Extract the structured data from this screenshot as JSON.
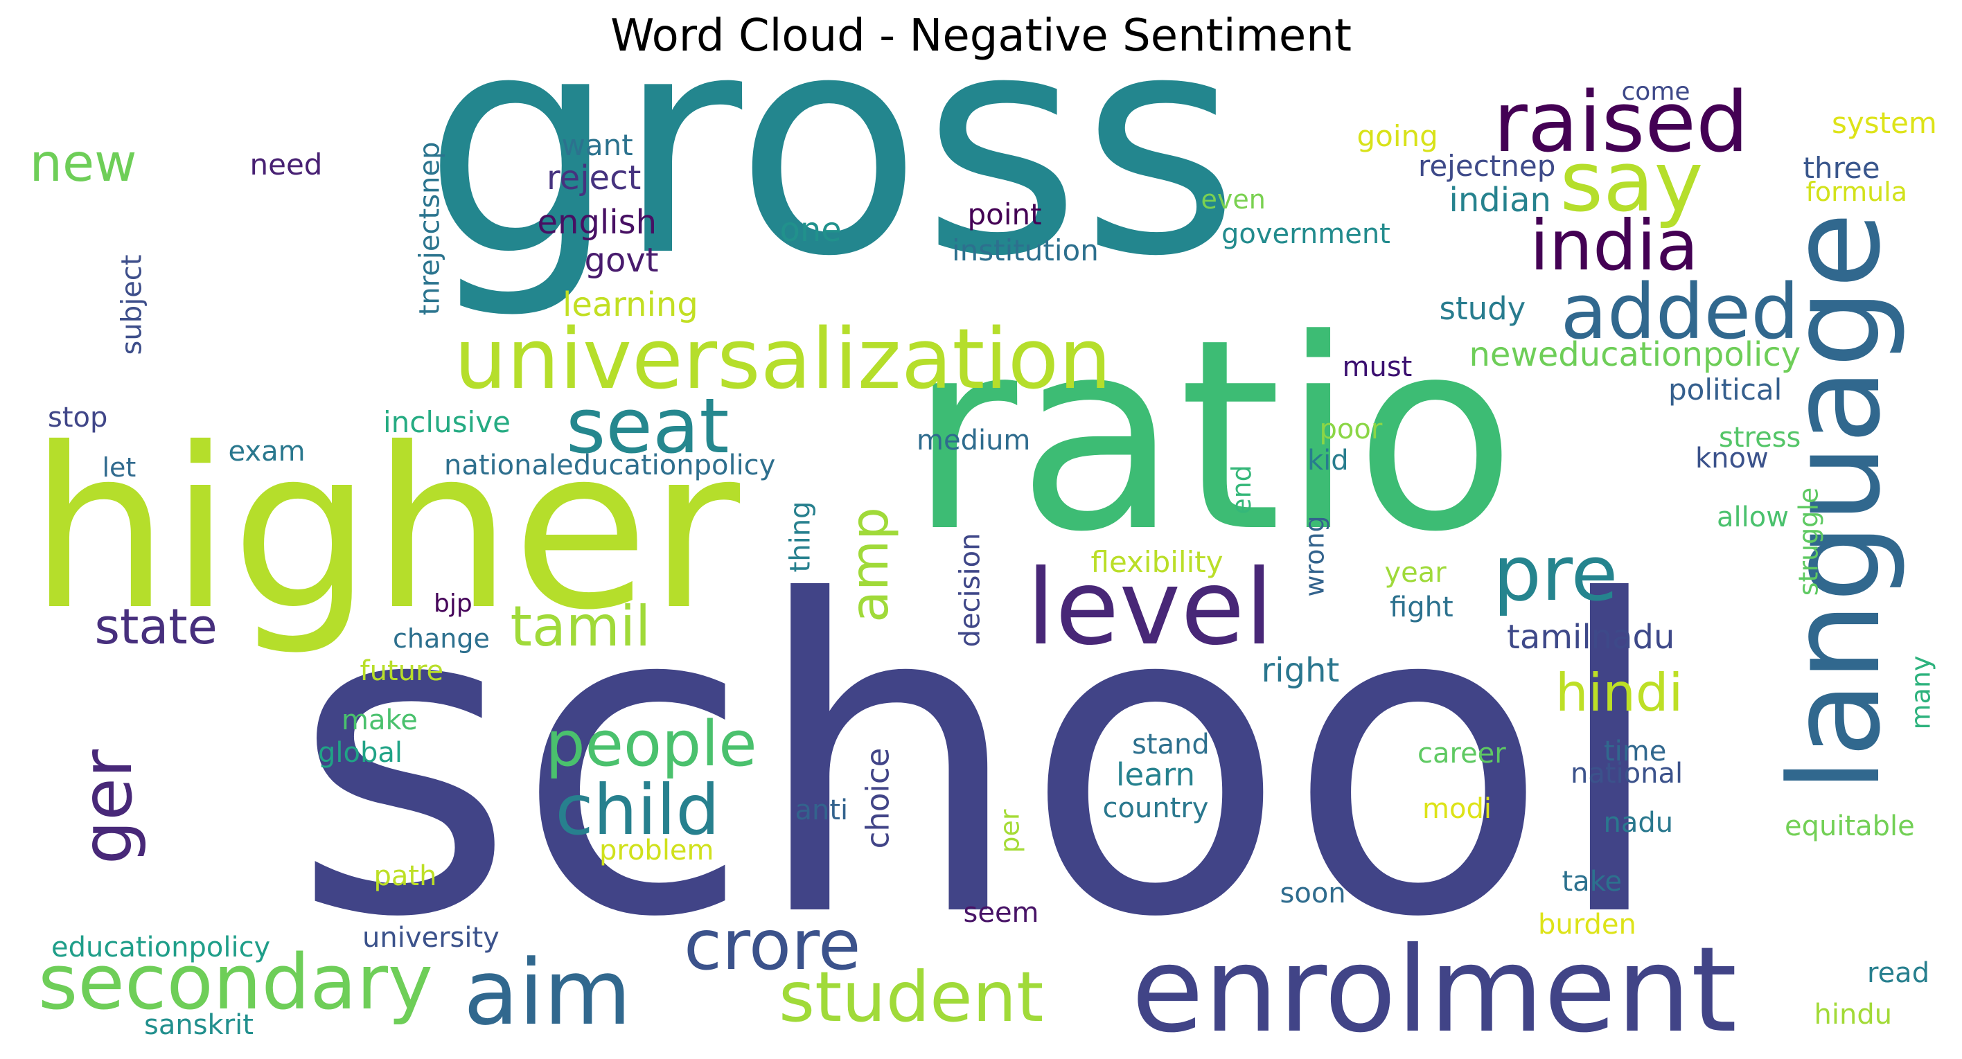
{
  "title": "Word Cloud - Negative Sentiment",
  "words": [
    {
      "text": "gross",
      "color": "#23868e"
    },
    {
      "text": "school",
      "color": "#414487"
    },
    {
      "text": "ratio",
      "color": "#3dbc74"
    },
    {
      "text": "higher",
      "color": "#b5de2b"
    },
    {
      "text": "enrolment",
      "color": "#414487"
    },
    {
      "text": "universalization",
      "color": "#b5de2b"
    },
    {
      "text": "language",
      "color": "#31688e"
    },
    {
      "text": "raised",
      "color": "#440154"
    },
    {
      "text": "say",
      "color": "#b5de2b"
    },
    {
      "text": "india",
      "color": "#440154"
    },
    {
      "text": "added",
      "color": "#31688e"
    },
    {
      "text": "level",
      "color": "#482777"
    },
    {
      "text": "seat",
      "color": "#25878e"
    },
    {
      "text": "pre",
      "color": "#25848e"
    },
    {
      "text": "secondary",
      "color": "#6ece58"
    },
    {
      "text": "aim",
      "color": "#31688e"
    },
    {
      "text": "crore",
      "color": "#3b528b"
    },
    {
      "text": "student",
      "color": "#a0da39"
    },
    {
      "text": "child",
      "color": "#27808e"
    },
    {
      "text": "people",
      "color": "#4ac16d"
    },
    {
      "text": "tamil",
      "color": "#a0da39"
    },
    {
      "text": "ger",
      "color": "#482878"
    },
    {
      "text": "state",
      "color": "#472f7d"
    },
    {
      "text": "amp",
      "color": "#a0da39"
    },
    {
      "text": "hindi",
      "color": "#bddf26"
    },
    {
      "text": "new",
      "color": "#6ece58"
    },
    {
      "text": "need",
      "color": "#482173"
    },
    {
      "text": "want",
      "color": "#2c728e"
    },
    {
      "text": "reject",
      "color": "#46337f"
    },
    {
      "text": "english",
      "color": "#471063"
    },
    {
      "text": "govt",
      "color": "#481b6d"
    },
    {
      "text": "learning",
      "color": "#c2df23"
    },
    {
      "text": "one",
      "color": "#21918c"
    },
    {
      "text": "point",
      "color": "#440154"
    },
    {
      "text": "institution",
      "color": "#2d708e"
    },
    {
      "text": "come",
      "color": "#3e4989"
    },
    {
      "text": "going",
      "color": "#d8e219"
    },
    {
      "text": "rejectnep",
      "color": "#3e4a89"
    },
    {
      "text": "indian",
      "color": "#26828e"
    },
    {
      "text": "even",
      "color": "#7ad151"
    },
    {
      "text": "government",
      "color": "#228b8d"
    },
    {
      "text": "system",
      "color": "#dde318"
    },
    {
      "text": "three",
      "color": "#39568c"
    },
    {
      "text": "formula",
      "color": "#d2e21b"
    },
    {
      "text": "study",
      "color": "#287c8e"
    },
    {
      "text": "neweducationpolicy",
      "color": "#6ece58"
    },
    {
      "text": "must",
      "color": "#3b0f70"
    },
    {
      "text": "political",
      "color": "#355f8d"
    },
    {
      "text": "tnrejectsnep",
      "color": "#2b748e"
    },
    {
      "text": "subject",
      "color": "#3d4e8a"
    },
    {
      "text": "stop",
      "color": "#404688"
    },
    {
      "text": "inclusive",
      "color": "#25ab82"
    },
    {
      "text": "exam",
      "color": "#2a788e"
    },
    {
      "text": "let",
      "color": "#306a8e"
    },
    {
      "text": "nationaleducationpolicy",
      "color": "#2e6f8e"
    },
    {
      "text": "medium",
      "color": "#2f6c8e"
    },
    {
      "text": "poor",
      "color": "#8bd646"
    },
    {
      "text": "kid",
      "color": "#287d8e"
    },
    {
      "text": "end",
      "color": "#35b779"
    },
    {
      "text": "stress",
      "color": "#54c568"
    },
    {
      "text": "know",
      "color": "#3b528b"
    },
    {
      "text": "allow",
      "color": "#4ac16d"
    },
    {
      "text": "struggle",
      "color": "#5ec962"
    },
    {
      "text": "thing",
      "color": "#27808e"
    },
    {
      "text": "decision",
      "color": "#3f4788"
    },
    {
      "text": "wrong",
      "color": "#33638d"
    },
    {
      "text": "flexibility",
      "color": "#bade28"
    },
    {
      "text": "year",
      "color": "#9fda3a"
    },
    {
      "text": "fight",
      "color": "#2c718e"
    },
    {
      "text": "bjp",
      "color": "#450559"
    },
    {
      "text": "change",
      "color": "#2d708e"
    },
    {
      "text": "tamilnadu",
      "color": "#3e4989"
    },
    {
      "text": "right",
      "color": "#2a768e"
    },
    {
      "text": "future",
      "color": "#b8de29"
    },
    {
      "text": "make",
      "color": "#4ac16d"
    },
    {
      "text": "global",
      "color": "#20a386"
    },
    {
      "text": "stand",
      "color": "#2d708e"
    },
    {
      "text": "learn",
      "color": "#26818e"
    },
    {
      "text": "country",
      "color": "#2a788e"
    },
    {
      "text": "career",
      "color": "#5ec962"
    },
    {
      "text": "time",
      "color": "#31688e"
    },
    {
      "text": "national",
      "color": "#3b528b"
    },
    {
      "text": "many",
      "color": "#2db27d"
    },
    {
      "text": "choice",
      "color": "#414487"
    },
    {
      "text": "anti",
      "color": "#33638d"
    },
    {
      "text": "per",
      "color": "#a5db36"
    },
    {
      "text": "modi",
      "color": "#dde318"
    },
    {
      "text": "equitable",
      "color": "#73d056"
    },
    {
      "text": "nadu",
      "color": "#2a788e"
    },
    {
      "text": "problem",
      "color": "#d0e11c"
    },
    {
      "text": "path",
      "color": "#bddf26"
    },
    {
      "text": "take",
      "color": "#2c718e"
    },
    {
      "text": "soon",
      "color": "#2f6c8e"
    },
    {
      "text": "seem",
      "color": "#481467"
    },
    {
      "text": "educationpolicy",
      "color": "#1f9e89"
    },
    {
      "text": "university",
      "color": "#3b528b"
    },
    {
      "text": "burden",
      "color": "#dde318"
    },
    {
      "text": "read",
      "color": "#277f8e"
    },
    {
      "text": "sanskrit",
      "color": "#218f8d"
    },
    {
      "text": "hindu",
      "color": "#a2da37"
    }
  ]
}
